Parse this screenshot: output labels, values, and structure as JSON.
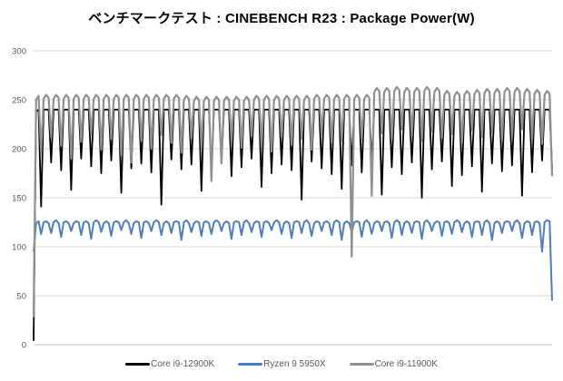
{
  "chart_data": {
    "type": "line",
    "title": "ベンチマークテスト : CINEBENCH R23 : Package Power(W)",
    "xlabel": "",
    "ylabel": "",
    "ylim": [
      0,
      300
    ],
    "yticks": [
      300,
      250,
      200,
      150,
      100,
      50,
      0
    ],
    "grid": true,
    "x_axis_labels_visible": false,
    "legend_position": "bottom",
    "grid_color": "#d9d9d9",
    "axis_line_color": "#c6c6c6",
    "series": [
      {
        "name": "Core i9-12900K",
        "color": "#000000",
        "stroke_width": 1.8,
        "values": [
          4,
          238,
          240,
          141,
          240,
          240,
          240,
          186,
          240,
          240,
          240,
          178,
          240,
          240,
          240,
          158,
          240,
          240,
          240,
          190,
          240,
          240,
          240,
          182,
          240,
          240,
          240,
          175,
          240,
          240,
          240,
          188,
          240,
          240,
          240,
          155,
          240,
          240,
          240,
          180,
          240,
          240,
          240,
          185,
          240,
          240,
          240,
          176,
          240,
          240,
          240,
          143,
          240,
          240,
          240,
          189,
          240,
          240,
          240,
          179,
          240,
          240,
          240,
          184,
          240,
          240,
          240,
          157,
          240,
          240,
          240,
          177,
          240,
          240,
          240,
          186,
          240,
          240,
          240,
          172,
          240,
          240,
          240,
          181,
          240,
          240,
          240,
          190,
          240,
          240,
          240,
          161,
          240,
          240,
          240,
          175,
          240,
          240,
          240,
          184,
          240,
          240,
          240,
          178,
          240,
          240,
          240,
          148,
          240,
          240,
          240,
          187,
          240,
          240,
          240,
          180,
          240,
          240,
          240,
          174,
          240,
          240,
          240,
          159,
          240,
          240,
          240,
          183,
          240,
          240,
          240,
          176,
          240,
          240,
          240,
          188,
          240,
          240,
          240,
          153,
          240,
          240,
          240,
          181,
          240,
          240,
          240,
          174,
          240,
          240,
          240,
          186,
          240,
          240,
          240,
          150,
          240,
          240,
          240,
          179,
          240,
          240,
          240,
          187,
          240,
          240,
          240,
          162,
          240,
          240,
          240,
          173,
          240,
          240,
          240,
          182,
          240,
          240,
          240,
          156,
          240,
          240,
          240,
          185,
          240,
          240,
          240,
          177,
          240,
          240,
          240,
          183,
          240,
          240,
          240,
          152,
          240,
          240,
          240,
          176,
          240,
          240,
          240,
          188,
          240,
          240,
          240,
          179
        ]
      },
      {
        "name": "Ryzen 9 5950X",
        "color": "#4e7fba",
        "stroke_width": 2,
        "values": [
          95,
          124,
          126,
          113,
          125,
          126,
          124,
          114,
          125,
          127,
          124,
          110,
          125,
          126,
          124,
          116,
          124,
          126,
          125,
          112,
          125,
          126,
          124,
          108,
          125,
          127,
          125,
          115,
          124,
          126,
          124,
          111,
          125,
          126,
          125,
          117,
          125,
          127,
          124,
          113,
          124,
          126,
          125,
          109,
          125,
          126,
          124,
          116,
          125,
          127,
          125,
          112,
          124,
          126,
          124,
          114,
          125,
          126,
          125,
          107,
          125,
          127,
          124,
          115,
          124,
          126,
          125,
          111,
          125,
          126,
          124,
          113,
          125,
          127,
          125,
          116,
          124,
          126,
          124,
          108,
          125,
          126,
          125,
          112,
          125,
          127,
          124,
          115,
          124,
          126,
          125,
          110,
          125,
          126,
          124,
          117,
          125,
          127,
          125,
          113,
          124,
          126,
          124,
          109,
          125,
          126,
          125,
          114,
          125,
          127,
          124,
          111,
          124,
          126,
          125,
          116,
          125,
          126,
          124,
          112,
          125,
          127,
          125,
          107,
          124,
          126,
          124,
          115,
          125,
          126,
          125,
          110,
          125,
          127,
          124,
          113,
          124,
          126,
          125,
          116,
          125,
          126,
          124,
          109,
          125,
          127,
          125,
          112,
          124,
          126,
          124,
          114,
          125,
          126,
          125,
          108,
          125,
          127,
          124,
          116,
          124,
          126,
          125,
          111,
          125,
          126,
          124,
          113,
          125,
          127,
          125,
          115,
          124,
          126,
          124,
          110,
          125,
          126,
          125,
          112,
          125,
          127,
          124,
          107,
          124,
          126,
          124,
          114,
          125,
          126,
          125,
          116,
          125,
          127,
          124,
          109,
          124,
          126,
          125,
          112,
          125,
          126,
          124,
          95,
          125,
          127,
          126,
          45
        ]
      },
      {
        "name": "Core i9-11900K",
        "color": "#909090",
        "stroke_width": 2.2,
        "values": [
          28,
          250,
          254,
          196,
          251,
          255,
          252,
          212,
          251,
          255,
          252,
          203,
          251,
          255,
          252,
          190,
          251,
          255,
          252,
          207,
          251,
          255,
          252,
          215,
          251,
          255,
          252,
          199,
          251,
          255,
          252,
          210,
          251,
          255,
          252,
          193,
          251,
          255,
          252,
          186,
          251,
          255,
          252,
          208,
          251,
          255,
          252,
          200,
          251,
          255,
          252,
          214,
          251,
          255,
          252,
          206,
          251,
          255,
          252,
          196,
          250,
          254,
          251,
          211,
          249,
          253,
          250,
          203,
          249,
          253,
          250,
          167,
          249,
          253,
          250,
          185,
          249,
          253,
          250,
          209,
          249,
          253,
          250,
          201,
          249,
          253,
          250,
          213,
          250,
          254,
          251,
          205,
          250,
          254,
          251,
          197,
          250,
          254,
          251,
          212,
          250,
          254,
          251,
          204,
          250,
          254,
          251,
          210,
          250,
          254,
          251,
          199,
          251,
          255,
          252,
          215,
          251,
          255,
          252,
          206,
          251,
          255,
          252,
          208,
          251,
          255,
          252,
          90,
          251,
          255,
          252,
          210,
          251,
          255,
          252,
          152,
          258,
          262,
          259,
          216,
          258,
          262,
          259,
          210,
          259,
          263,
          260,
          220,
          258,
          262,
          259,
          213,
          258,
          262,
          259,
          208,
          259,
          263,
          260,
          218,
          258,
          262,
          259,
          211,
          255,
          259,
          256,
          215,
          254,
          258,
          255,
          206,
          255,
          259,
          256,
          219,
          256,
          260,
          257,
          212,
          257,
          261,
          258,
          217,
          257,
          261,
          258,
          209,
          258,
          262,
          259,
          214,
          258,
          262,
          259,
          220,
          257,
          261,
          258,
          210,
          256,
          260,
          257,
          205,
          255,
          259,
          256,
          172
        ]
      }
    ]
  }
}
